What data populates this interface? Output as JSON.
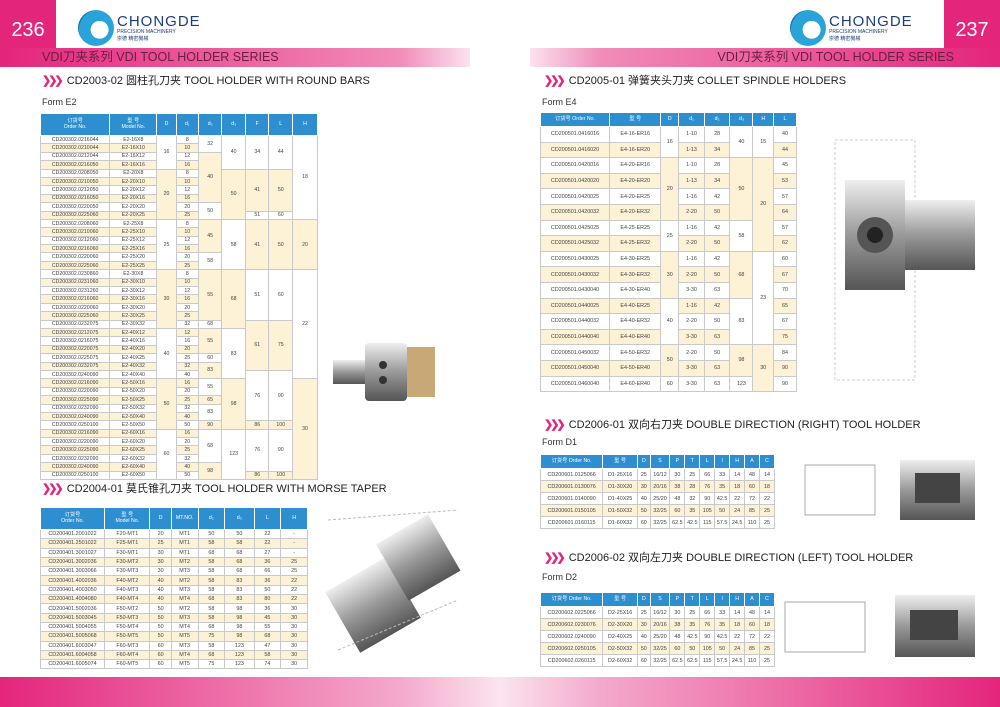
{
  "left": {
    "page_number": "236",
    "series_title": "VDI刀夹系列 VDI TOOL HOLDER SERIES",
    "logo": {
      "brand": "CHONGDE",
      "sub": "PRECISION MACHINERY",
      "cn": "崇德 精密機械"
    },
    "section1": {
      "title": "CD2003-02  圆柱孔刀夹 TOOL HOLDER WITH ROUND BARS",
      "form": "Form E2",
      "headers": [
        "订货号\nOrder No.",
        "型 号\nModel No.",
        "D",
        "d₁",
        "d₂",
        "d₃",
        "F",
        "L",
        "H"
      ],
      "rows": [
        [
          "CD200302.0216044",
          "E2-16X8",
          "16",
          "8",
          "32",
          "40",
          "34",
          "44",
          "18"
        ],
        [
          "CD200302.0210044",
          "E2-16X10",
          "16",
          "10",
          "32",
          "40",
          "34",
          "44",
          "18"
        ],
        [
          "CD200302.0212044",
          "E2-16X12",
          "16",
          "12",
          "40",
          "40",
          "34",
          "44",
          "18"
        ],
        [
          "CD200302.0216050",
          "E2-16X16",
          "16",
          "16",
          "40",
          "40",
          "34",
          "44",
          "18"
        ],
        [
          "CD200302.0208050",
          "E2-20X8",
          "20",
          "8",
          "40",
          "50",
          "41",
          "50",
          "18"
        ],
        [
          "CD200302.0210050",
          "E2-20X10",
          "20",
          "10",
          "40",
          "50",
          "41",
          "50",
          "18"
        ],
        [
          "CD200302.0212050",
          "E2-20X12",
          "20",
          "12",
          "40",
          "50",
          "41",
          "50",
          "18"
        ],
        [
          "CD200302.0216050",
          "E2-20X16",
          "20",
          "16",
          "40",
          "50",
          "41",
          "50",
          "18"
        ],
        [
          "CD200302.0220050",
          "E2-20X20",
          "20",
          "20",
          "50",
          "50",
          "41",
          "50",
          "18"
        ],
        [
          "CD200302.0225060",
          "E2-20X25",
          "20",
          "25",
          "50",
          "50",
          "51",
          "60",
          "18"
        ],
        [
          "CD200302.0208060",
          "E2-25X8",
          "25",
          "8",
          "45",
          "58",
          "41",
          "50",
          "20"
        ],
        [
          "CD200302.0210060",
          "E2-25X10",
          "25",
          "10",
          "45",
          "58",
          "41",
          "50",
          "20"
        ],
        [
          "CD200302.0212060",
          "E2-25X12",
          "25",
          "12",
          "45",
          "58",
          "41",
          "50",
          "20"
        ],
        [
          "CD200302.0216060",
          "E2-25X16",
          "25",
          "16",
          "45",
          "58",
          "41",
          "50",
          "20"
        ],
        [
          "CD200302.0220060",
          "E2-25X20",
          "25",
          "20",
          "58",
          "58",
          "41",
          "50",
          "20"
        ],
        [
          "CD200302.0225060",
          "E2-25X25",
          "25",
          "25",
          "58",
          "58",
          "41",
          "50",
          "20"
        ],
        [
          "CD200302.0230860",
          "E2-30X8",
          "30",
          "8",
          "55",
          "68",
          "51",
          "60",
          "22"
        ],
        [
          "CD200302.0231060",
          "E2-30X10",
          "30",
          "10",
          "55",
          "68",
          "51",
          "60",
          "22"
        ],
        [
          "CD200302.0231260",
          "E2-30X12",
          "30",
          "12",
          "55",
          "68",
          "51",
          "60",
          "22"
        ],
        [
          "CD200302.0216060",
          "E2-30X16",
          "30",
          "16",
          "55",
          "68",
          "51",
          "60",
          "22"
        ],
        [
          "CD200302.0220060",
          "E2-30X20",
          "30",
          "20",
          "55",
          "68",
          "51",
          "60",
          "22"
        ],
        [
          "CD200302.0225060",
          "E2-30X25",
          "30",
          "25",
          "55",
          "68",
          "51",
          "60",
          "22"
        ],
        [
          "CD200302.0232075",
          "E2-30X32",
          "30",
          "32",
          "68",
          "68",
          "61",
          "75",
          "22"
        ],
        [
          "CD200302.0212075",
          "E2-40X12",
          "40",
          "12",
          "55",
          "83",
          "61",
          "75",
          "22"
        ],
        [
          "CD200302.0216075",
          "E2-40X16",
          "40",
          "16",
          "55",
          "83",
          "61",
          "75",
          "22"
        ],
        [
          "CD200302.0220075",
          "E2-40X20",
          "40",
          "20",
          "55",
          "83",
          "61",
          "75",
          "22"
        ],
        [
          "CD200302.0225075",
          "E2-40X25",
          "40",
          "25",
          "60",
          "83",
          "61",
          "75",
          "22"
        ],
        [
          "CD200302.0232075",
          "E2-40X32",
          "40",
          "32",
          "83",
          "83",
          "61",
          "75",
          "22"
        ],
        [
          "CD200302.0240090",
          "E2-40X40",
          "40",
          "40",
          "83",
          "83",
          "76",
          "90",
          "22"
        ],
        [
          "CD200302.0216090",
          "E2-50X16",
          "50",
          "16",
          "55",
          "98",
          "76",
          "90",
          "30"
        ],
        [
          "CD200302.0220090",
          "E2-50X20",
          "50",
          "20",
          "55",
          "98",
          "76",
          "90",
          "30"
        ],
        [
          "CD200302.0225090",
          "E2-50X25",
          "50",
          "25",
          "65",
          "98",
          "76",
          "90",
          "30"
        ],
        [
          "CD200302.0232090",
          "E2-50X32",
          "50",
          "32",
          "83",
          "98",
          "76",
          "90",
          "30"
        ],
        [
          "CD200302.0240090",
          "E2-50X40",
          "50",
          "40",
          "83",
          "98",
          "76",
          "90",
          "30"
        ],
        [
          "CD200302.0250100",
          "E2-50X50",
          "50",
          "50",
          "90",
          "98",
          "86",
          "100",
          "30"
        ],
        [
          "CD200302.0216090",
          "E2-60X16",
          "60",
          "16",
          "68",
          "123",
          "76",
          "90",
          "30"
        ],
        [
          "CD200302.0220090",
          "E2-60X20",
          "60",
          "20",
          "68",
          "123",
          "76",
          "90",
          "30"
        ],
        [
          "CD200302.0225090",
          "E2-60X25",
          "60",
          "25",
          "68",
          "123",
          "76",
          "90",
          "30"
        ],
        [
          "CD200302.0232090",
          "E2-60X32",
          "60",
          "32",
          "68",
          "123",
          "76",
          "90",
          "30"
        ],
        [
          "CD200302.0240090",
          "E2-60X40",
          "60",
          "40",
          "98",
          "123",
          "76",
          "90",
          "30"
        ],
        [
          "CD200302.0250100",
          "E2-60X50",
          "60",
          "50",
          "98",
          "123",
          "86",
          "100",
          "30"
        ]
      ]
    },
    "section2": {
      "title": "CD2004-01  莫氏锥孔刀夹 TOOL HOLDER WITH MORSE TAPER",
      "headers": [
        "订货号\nOrder No.",
        "型 号\nModel No.",
        "D",
        "MT.NO.",
        "d₂",
        "d₃",
        "L",
        "H"
      ],
      "rows": [
        [
          "CD200401.2001022",
          "F20-MT1",
          "20",
          "MT1",
          "50",
          "50",
          "22",
          "-"
        ],
        [
          "CD200401.2501022",
          "F25-MT1",
          "25",
          "MT1",
          "58",
          "58",
          "22",
          "-"
        ],
        [
          "CD200401.3001027",
          "F30-MT1",
          "30",
          "MT1",
          "68",
          "68",
          "27",
          "-"
        ],
        [
          "CD200401.3002036",
          "F30-MT2",
          "30",
          "MT2",
          "58",
          "68",
          "36",
          "25"
        ],
        [
          "CD200401.3003066",
          "F30-MT3",
          "30",
          "MT3",
          "58",
          "68",
          "66",
          "25"
        ],
        [
          "CD200401.4002036",
          "F40-MT2",
          "40",
          "MT2",
          "58",
          "83",
          "36",
          "22"
        ],
        [
          "CD200401.4003050",
          "F40-MT3",
          "40",
          "MT3",
          "58",
          "83",
          "50",
          "22"
        ],
        [
          "CD200401.4004080",
          "F40-MT4",
          "40",
          "MT4",
          "68",
          "83",
          "80",
          "22"
        ],
        [
          "CD200401.5002036",
          "F50-MT2",
          "50",
          "MT2",
          "58",
          "98",
          "36",
          "30"
        ],
        [
          "CD200401.5003045",
          "F50-MT3",
          "50",
          "MT3",
          "58",
          "98",
          "45",
          "30"
        ],
        [
          "CD200401.5004055",
          "F50-MT4",
          "50",
          "MT4",
          "68",
          "98",
          "55",
          "30"
        ],
        [
          "CD200401.5005068",
          "F50-MT5",
          "50",
          "MT5",
          "75",
          "98",
          "68",
          "30"
        ],
        [
          "CD200401.6003047",
          "F60-MT3",
          "60",
          "MT3",
          "58",
          "123",
          "47",
          "30"
        ],
        [
          "CD200401.6004058",
          "F60-MT4",
          "60",
          "MT4",
          "68",
          "123",
          "58",
          "30"
        ],
        [
          "CD200401.6005074",
          "F60-MT5",
          "60",
          "MT5",
          "75",
          "123",
          "74",
          "30"
        ]
      ]
    }
  },
  "right": {
    "page_number": "237",
    "series_title": "VDI刀夹系列 VDI TOOL HOLDER SERIES",
    "logo": {
      "brand": "CHONGDE",
      "sub": "PRECISION MACHINERY",
      "cn": "崇德 精密機械"
    },
    "section1": {
      "title": "CD2005-01  弹簧夹头刀夹 COLLET SPINDLE HOLDERS",
      "form": "Form E4",
      "headers": [
        "订货号 Order No.",
        "型 号",
        "D",
        "d₁",
        "d₂",
        "d₃",
        "H",
        "L"
      ],
      "rows": [
        [
          "CD200501.0416016",
          "E4-16-ER16",
          "16",
          "1-10",
          "28",
          "40",
          "15",
          "40"
        ],
        [
          "CD200501.0416020",
          "E4-16-ER20",
          "16",
          "1-13",
          "34",
          "40",
          "15",
          "44"
        ],
        [
          "CD200501.0420016",
          "E4-20-ER16",
          "20",
          "1-10",
          "28",
          "50",
          "20",
          "45"
        ],
        [
          "CD200501.0420020",
          "E4-20-ER20",
          "20",
          "1-13",
          "34",
          "50",
          "20",
          "53"
        ],
        [
          "CD200501.0420025",
          "E4-20-ER25",
          "20",
          "1-16",
          "42",
          "50",
          "20",
          "57"
        ],
        [
          "CD200501.0420032",
          "E4-20-ER32",
          "20",
          "2-20",
          "50",
          "50",
          "20",
          "64"
        ],
        [
          "CD200501.0425025",
          "E4-25-ER25",
          "25",
          "1-16",
          "42",
          "58",
          "20",
          "57"
        ],
        [
          "CD200501.0425032",
          "E4-25-ER32",
          "25",
          "2-20",
          "50",
          "58",
          "20",
          "62"
        ],
        [
          "CD200501.0430025",
          "E4-30-ER25",
          "30",
          "1-16",
          "42",
          "68",
          "23",
          "60"
        ],
        [
          "CD200501.0430032",
          "E4-30-ER32",
          "30",
          "2-20",
          "50",
          "68",
          "23",
          "67"
        ],
        [
          "CD200501.0430040",
          "E4-30-ER40",
          "30",
          "3-30",
          "63",
          "68",
          "23",
          "70"
        ],
        [
          "CD200501.0440025",
          "E4-40-ER25",
          "40",
          "1-16",
          "42",
          "83",
          "23",
          "65"
        ],
        [
          "CD200501.0440032",
          "E4-40-ER32",
          "40",
          "2-20",
          "50",
          "83",
          "23",
          "67"
        ],
        [
          "CD200501.0440040",
          "E4-40-ER40",
          "40",
          "3-30",
          "63",
          "83",
          "23",
          "75"
        ],
        [
          "CD200501.0450032",
          "E4-50-ER32",
          "50",
          "2-20",
          "50",
          "98",
          "30",
          "84"
        ],
        [
          "CD200501.0450040",
          "E4-50-ER40",
          "50",
          "3-30",
          "63",
          "98",
          "30",
          "90"
        ],
        [
          "CD200501.0460040",
          "E4-60-ER40",
          "60",
          "3-30",
          "63",
          "123",
          "30",
          "90"
        ]
      ]
    },
    "section2": {
      "title": "CD2006-01  双向右刀夹 DOUBLE DIRECTION (RIGHT) TOOL HOLDER",
      "form": "Form D1",
      "headers": [
        "订货号 Order No.",
        "型 号",
        "D",
        "S",
        "P",
        "T",
        "L",
        "I",
        "H",
        "A",
        "C"
      ],
      "rows": [
        [
          "CD200601.0125066",
          "D1-25X16",
          "25",
          "16/12",
          "30",
          "25",
          "66",
          "33",
          "14",
          "48",
          "14"
        ],
        [
          "CD200601.0130076",
          "D1-30X20",
          "30",
          "20/16",
          "38",
          "28",
          "76",
          "35",
          "18",
          "60",
          "18"
        ],
        [
          "CD200601.0140090",
          "D1-40X25",
          "40",
          "25/20",
          "48",
          "32",
          "90",
          "42.5",
          "22",
          "72",
          "22"
        ],
        [
          "CD200601.0150105",
          "D1-50X32",
          "50",
          "32/25",
          "60",
          "35",
          "105",
          "50",
          "24",
          "85",
          "25"
        ],
        [
          "CD200601.0160115",
          "D1-60X32",
          "60",
          "32/25",
          "62.5",
          "42.5",
          "115",
          "57.5",
          "24.5",
          "110",
          "25"
        ]
      ]
    },
    "section3": {
      "title": "CD2006-02  双向左刀夹 DOUBLE DIRECTION (LEFT) TOOL HOLDER",
      "form": "Form D2",
      "headers": [
        "订货号 Order No.",
        "型 号",
        "D",
        "S",
        "P",
        "T",
        "L",
        "I",
        "H",
        "A",
        "C"
      ],
      "rows": [
        [
          "CD200602.0225066",
          "D2-25X16",
          "25",
          "16/12",
          "30",
          "25",
          "66",
          "33",
          "14",
          "48",
          "14"
        ],
        [
          "CD200602.0230076",
          "D2-30X20",
          "30",
          "20/16",
          "38",
          "35",
          "76",
          "35",
          "18",
          "60",
          "18"
        ],
        [
          "CD200602.0240090",
          "D2-40X25",
          "40",
          "25/20",
          "48",
          "42.5",
          "90",
          "42.5",
          "22",
          "72",
          "22"
        ],
        [
          "CD200602.0250105",
          "D2-50X32",
          "50",
          "32/25",
          "60",
          "50",
          "105",
          "50",
          "24",
          "85",
          "25"
        ],
        [
          "CD200602.0260115",
          "D2-60X32",
          "60",
          "32/25",
          "62.5",
          "62.5",
          "115",
          "57.5",
          "24.5",
          "110",
          "25"
        ]
      ]
    }
  },
  "colors": {
    "accent": "#e4257c",
    "table_header": "#2e8fd0",
    "row_highlight": "#fdf1d6"
  }
}
